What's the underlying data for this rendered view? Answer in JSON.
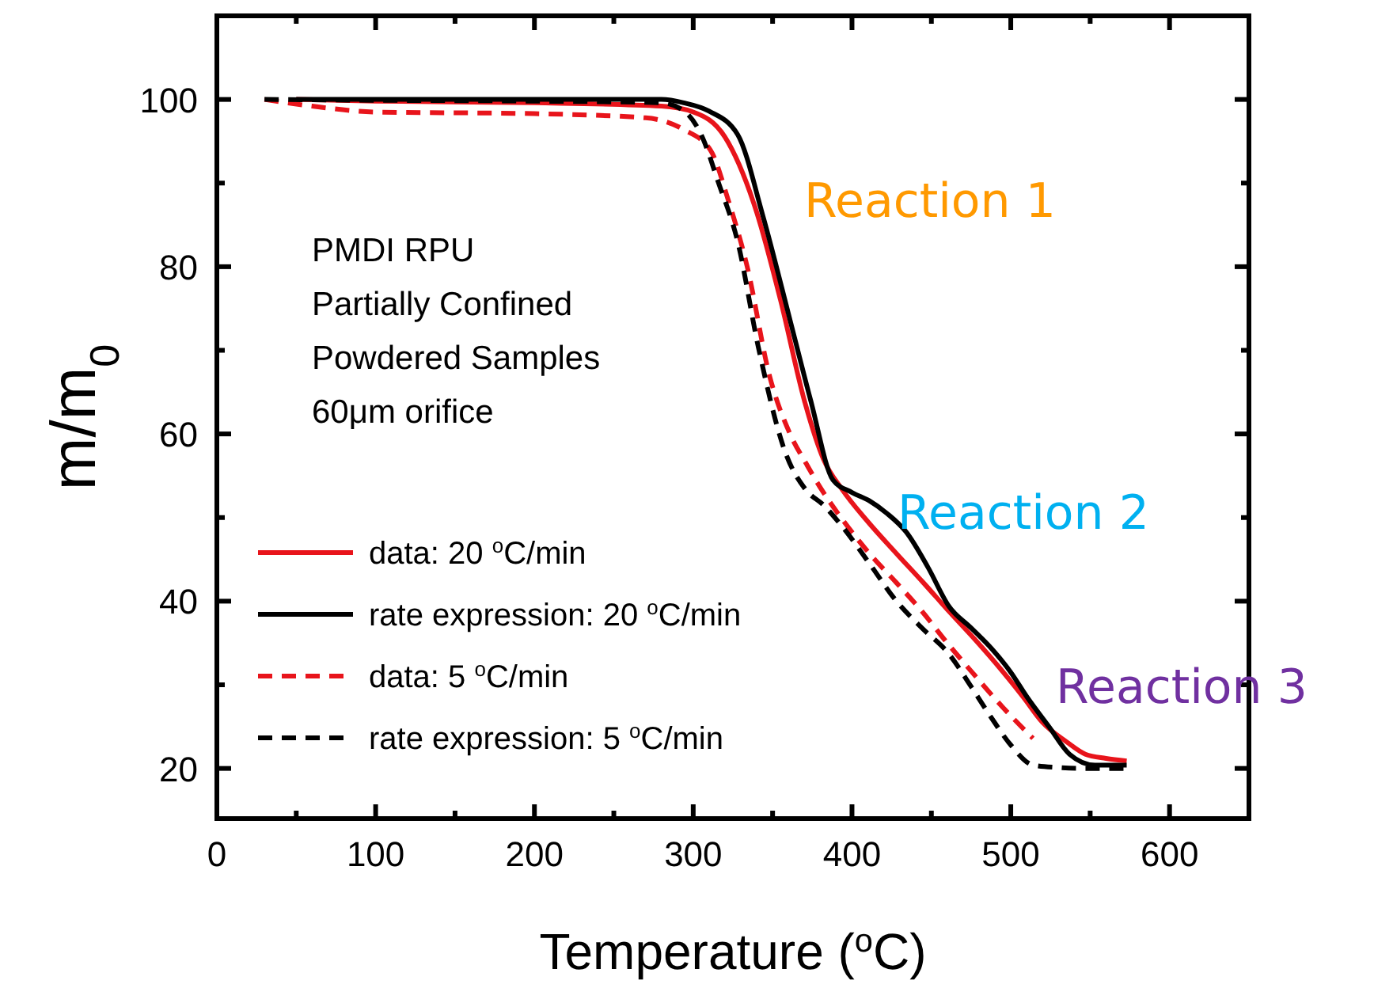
{
  "chart_data": {
    "type": "line",
    "xlabel": "Temperature ($^{o}$C)",
    "ylabel": "m/m$_{0}$",
    "xlim": [
      0,
      650
    ],
    "ylim": [
      14,
      110
    ],
    "xticks": [
      0,
      100,
      200,
      300,
      400,
      500,
      600
    ],
    "yticks": [
      20,
      40,
      60,
      80,
      100
    ],
    "legend": "bottom left",
    "grid": false,
    "series": [
      {
        "name": "data: 20 $^{o}$C/min",
        "color": "#e8141b",
        "line_style": "solid",
        "x": [
          50,
          100,
          200,
          280,
          300,
          320,
          340,
          355,
          370,
          382,
          394,
          410,
          428,
          445,
          461,
          478,
          494,
          508,
          520,
          535,
          547,
          560,
          573
        ],
        "values": [
          100,
          99.8,
          99.6,
          99.2,
          98.5,
          95.5,
          86.5,
          76,
          64,
          57,
          53.3,
          49.5,
          45.7,
          42.2,
          38.8,
          35.3,
          31.8,
          28.5,
          25.5,
          23.2,
          21.7,
          21.2,
          20.9
        ]
      },
      {
        "name": "rate expression: 20 $^{o}$C/min",
        "color": "#000000",
        "line_style": "solid",
        "x": [
          50,
          100,
          200,
          280,
          294,
          310,
          328,
          344,
          361,
          374,
          388,
          400,
          411,
          422,
          434,
          448,
          461,
          475,
          488,
          500,
          510,
          524,
          537,
          553,
          573
        ],
        "values": [
          100,
          100,
          100,
          100,
          99.6,
          98.6,
          95.8,
          86,
          73.6,
          64,
          54.5,
          53,
          52,
          50.5,
          48.3,
          44,
          39.4,
          36.8,
          34.3,
          31.5,
          28.6,
          25,
          21.7,
          20.4,
          20.4
        ]
      },
      {
        "name": "data: 5 $^{o}$C/min",
        "color": "#e8141b",
        "line_style": "dashed",
        "x": [
          30,
          60,
          100,
          200,
          270,
          294,
          311,
          322,
          334,
          348,
          361,
          371,
          381,
          395,
          411,
          428,
          444,
          460,
          477,
          495,
          514
        ],
        "values": [
          100,
          99.2,
          98.5,
          98.3,
          97.8,
          96.4,
          93.9,
          88,
          80,
          67,
          60,
          56.5,
          53.3,
          49.5,
          45.7,
          42.2,
          38.8,
          35,
          31.2,
          27.3,
          23.6
        ]
      },
      {
        "name": "rate expression: 5 $^{o}$C/min",
        "color": "#000000",
        "line_style": "dashed",
        "x": [
          30,
          100,
          200,
          280,
          295,
          305,
          316,
          328,
          341,
          358,
          371,
          382,
          394,
          411,
          428,
          444,
          461,
          475,
          488,
          500,
          514,
          530,
          543,
          573
        ],
        "values": [
          100,
          99.9,
          99.8,
          99.6,
          98.5,
          95.8,
          90,
          83,
          70.4,
          57.8,
          53.3,
          51.5,
          48.9,
          44.5,
          40,
          36.8,
          33.7,
          29.8,
          26,
          22.8,
          20.4,
          20.1,
          20,
          20
        ]
      }
    ],
    "annotations": [
      "PMDI RPU",
      "Partially Confined",
      "Powdered Samples",
      "60μm orifice",
      "Reaction 1",
      "Reaction 2",
      "Reaction 3"
    ]
  }
}
